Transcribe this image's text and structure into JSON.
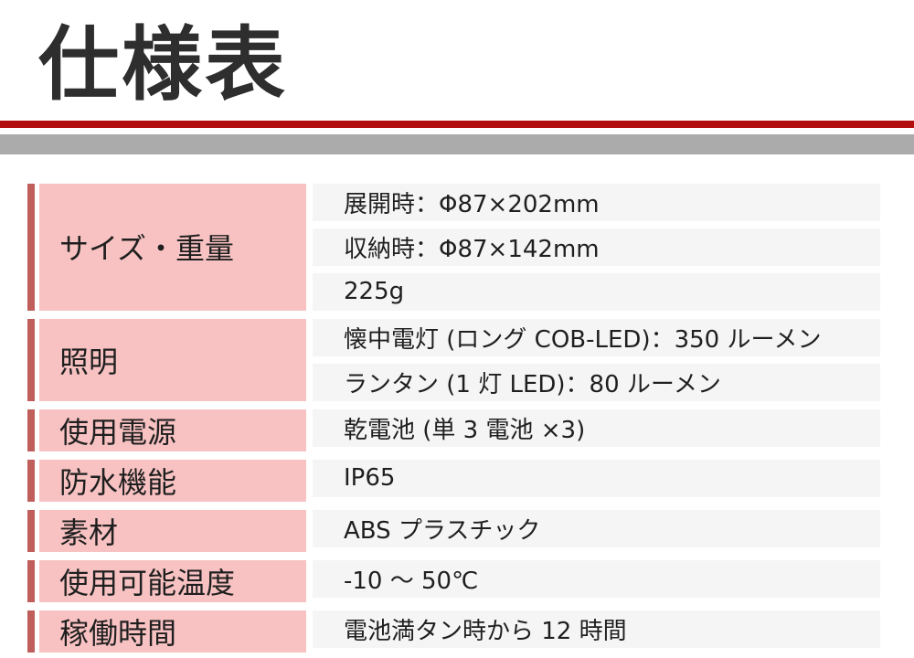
{
  "page": {
    "title": "仕様表"
  },
  "table": {
    "rows": [
      {
        "label": "サイズ・重量",
        "values": [
          "展開時：Φ87×202mm",
          "収納時：Φ87×142mm",
          "225g"
        ]
      },
      {
        "label": "照明",
        "values": [
          "懐中電灯 (ロング COB-LED)：350 ルーメン",
          "ランタン (1 灯 LED)：80 ルーメン"
        ]
      },
      {
        "label": "使用電源",
        "values": [
          "乾電池 (単 3 電池 ×3)"
        ]
      },
      {
        "label": "防水機能",
        "values": [
          "IP65"
        ]
      },
      {
        "label": "素材",
        "values": [
          "ABS プラスチック"
        ]
      },
      {
        "label": "使用可能温度",
        "values": [
          "-10 ～ 50℃"
        ]
      },
      {
        "label": "稼働時間",
        "values": [
          "電池満タン時から 12 時間"
        ]
      }
    ]
  },
  "colors": {
    "title_text": "#2e2e2e",
    "header_red_line": "#b30e0e",
    "header_gray_bar": "#ababab",
    "row_accent_red": "#c05e5b",
    "label_cell_pink": "#f8c2c2",
    "value_cell_gray": "#f5f5f5",
    "body_text": "#1f1f1f"
  }
}
